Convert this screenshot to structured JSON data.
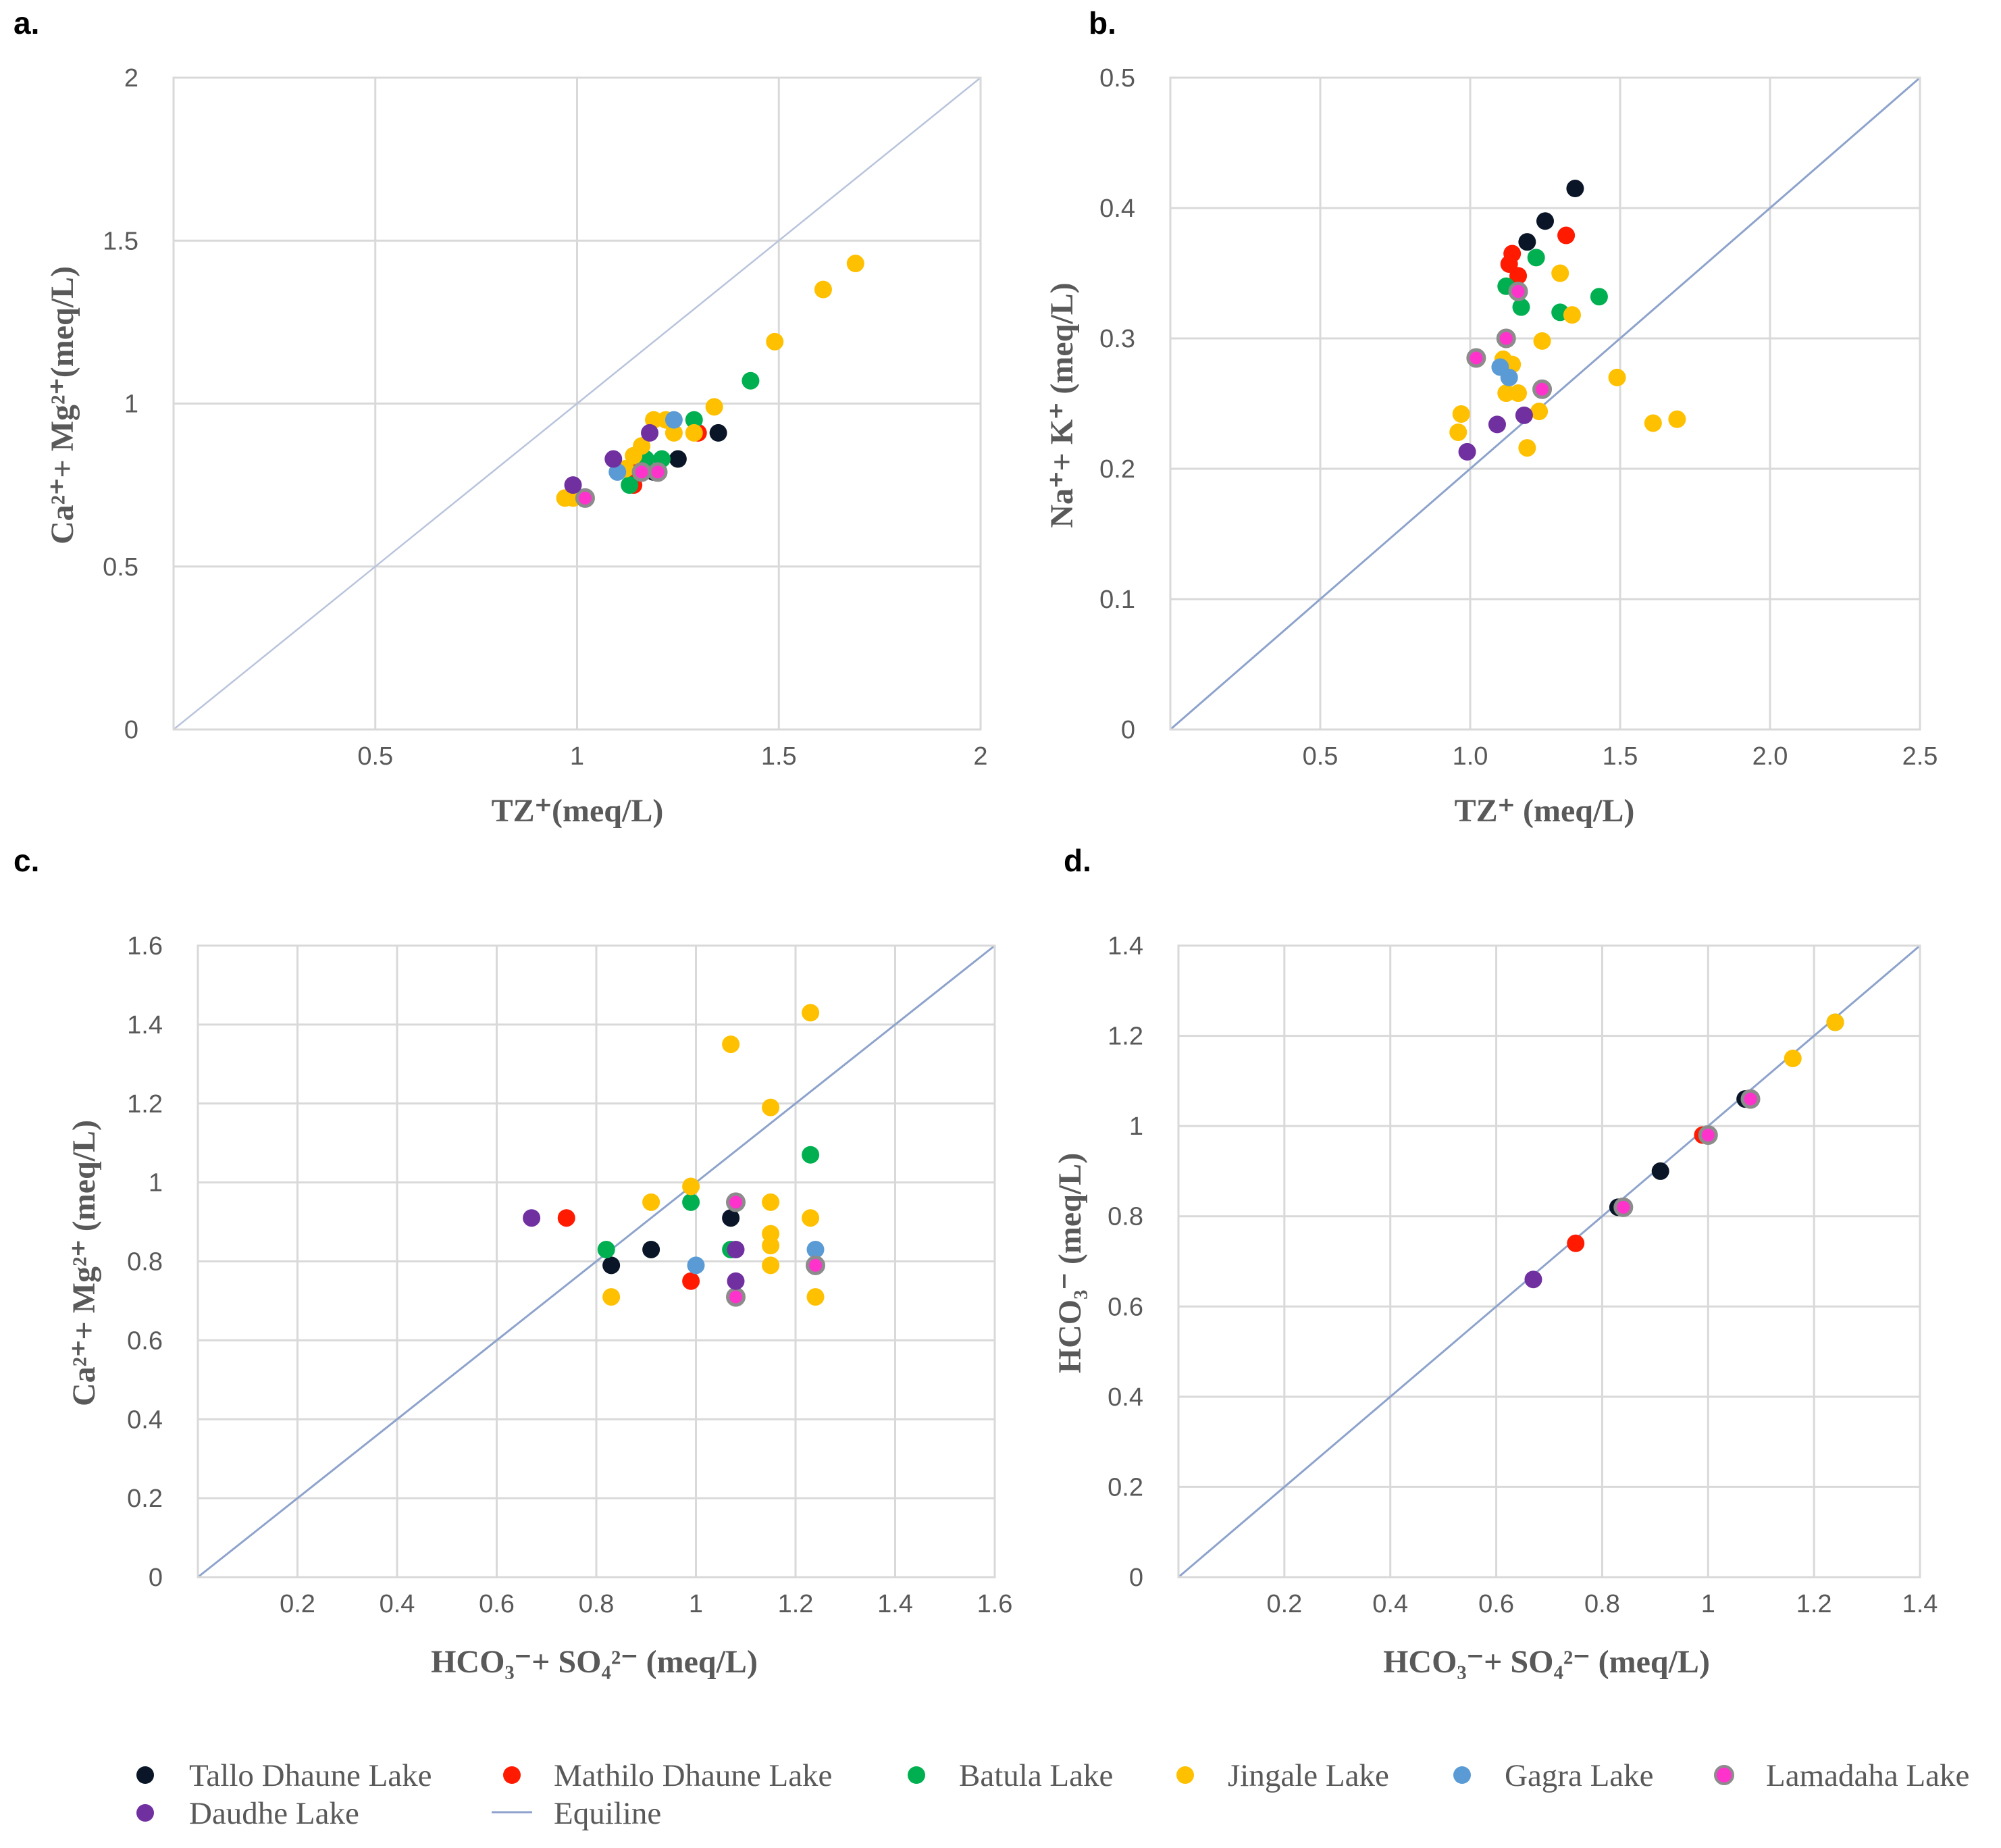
{
  "legend": {
    "items": [
      {
        "label": "Tallo Dhaune Lake",
        "color": "#0a1628",
        "marker": "dot"
      },
      {
        "label": "Mathilo Dhaune Lake",
        "color": "#ff1a00",
        "marker": "dot"
      },
      {
        "label": "Batula Lake",
        "color": "#00b050",
        "marker": "dot"
      },
      {
        "label": "Jingale Lake",
        "color": "#ffc000",
        "marker": "dot"
      },
      {
        "label": "Gagra Lake",
        "color": "#5b9bd5",
        "marker": "dot"
      },
      {
        "label": "Lamadaha Lake",
        "color": "#ff33cc",
        "marker": "dot"
      },
      {
        "label": "Daudhe Lake",
        "color": "#7030a0",
        "marker": "dot"
      },
      {
        "label": "Equiline",
        "color": "#8ea3cc",
        "marker": "line"
      }
    ]
  },
  "chart_data": [
    {
      "panel": "a.",
      "type": "scatter",
      "xlabel": "TZ⁺(meq/L)",
      "ylabel": "Ca²⁺+ Mg²⁺(meq/L)",
      "xlim": [
        0,
        2
      ],
      "ylim": [
        0,
        2
      ],
      "xticks": [
        {
          "v": 0.5,
          "t": "0.5"
        },
        {
          "v": 1,
          "t": "1"
        },
        {
          "v": 1.5,
          "t": "1.5"
        },
        {
          "v": 2,
          "t": "2"
        }
      ],
      "yticks": [
        {
          "v": 0,
          "t": "0"
        },
        {
          "v": 0.5,
          "t": "0.5"
        },
        {
          "v": 1,
          "t": "1"
        },
        {
          "v": 1.5,
          "t": "1.5"
        },
        {
          "v": 2,
          "t": "2"
        }
      ],
      "equiline": [
        [
          0,
          0
        ],
        [
          2,
          2
        ]
      ],
      "series": [
        {
          "name": "Tallo Dhaune Lake",
          "points": [
            [
              1.25,
              0.83
            ],
            [
              1.19,
              0.79
            ],
            [
              1.35,
              0.91
            ]
          ]
        },
        {
          "name": "Mathilo Dhaune Lake",
          "points": [
            [
              1.15,
              0.79
            ],
            [
              1.14,
              0.75
            ],
            [
              1.3,
              0.91
            ]
          ]
        },
        {
          "name": "Batula Lake",
          "points": [
            [
              1.17,
              0.83
            ],
            [
              1.21,
              0.83
            ],
            [
              1.13,
              0.75
            ],
            [
              1.29,
              0.95
            ],
            [
              1.43,
              1.07
            ]
          ]
        },
        {
          "name": "Jingale Lake",
          "points": [
            [
              0.97,
              0.71
            ],
            [
              0.99,
              0.71
            ],
            [
              1.12,
              0.8
            ],
            [
              1.14,
              0.84
            ],
            [
              1.16,
              0.87
            ],
            [
              1.19,
              0.95
            ],
            [
              1.22,
              0.95
            ],
            [
              1.24,
              0.91
            ],
            [
              1.29,
              0.91
            ],
            [
              1.34,
              0.99
            ],
            [
              1.49,
              1.19
            ],
            [
              1.61,
              1.35
            ],
            [
              1.69,
              1.43
            ]
          ]
        },
        {
          "name": "Gagra Lake",
          "points": [
            [
              1.1,
              0.79
            ],
            [
              1.24,
              0.95
            ]
          ]
        },
        {
          "name": "Lamadaha Lake",
          "points": [
            [
              1.02,
              0.71
            ],
            [
              1.16,
              0.79
            ],
            [
              1.2,
              0.79
            ]
          ]
        },
        {
          "name": "Daudhe Lake",
          "points": [
            [
              0.99,
              0.75
            ],
            [
              1.09,
              0.83
            ],
            [
              1.18,
              0.91
            ]
          ]
        }
      ]
    },
    {
      "panel": "b.",
      "type": "scatter",
      "xlabel": "TZ⁺ (meq/L)",
      "ylabel": "Na⁺+ K⁺ (meq/L)",
      "xlim": [
        0,
        2.5
      ],
      "ylim": [
        0,
        0.5
      ],
      "xticks": [
        {
          "v": 0.5,
          "t": "0.5"
        },
        {
          "v": 1,
          "t": "1.0"
        },
        {
          "v": 1.5,
          "t": "1.5"
        },
        {
          "v": 2,
          "t": "2.0"
        },
        {
          "v": 2.5,
          "t": "2.5"
        }
      ],
      "yticks": [
        {
          "v": 0,
          "t": "0"
        },
        {
          "v": 0.1,
          "t": "0.1"
        },
        {
          "v": 0.2,
          "t": "0.2"
        },
        {
          "v": 0.3,
          "t": "0.3"
        },
        {
          "v": 0.4,
          "t": "0.4"
        },
        {
          "v": 0.5,
          "t": "0.5"
        }
      ],
      "equiline": [
        [
          0,
          0
        ],
        [
          2.5,
          0.5
        ]
      ],
      "series": [
        {
          "name": "Tallo Dhaune Lake",
          "points": [
            [
              1.19,
              0.374
            ],
            [
              1.25,
              0.39
            ],
            [
              1.35,
              0.415
            ]
          ]
        },
        {
          "name": "Mathilo Dhaune Lake",
          "points": [
            [
              1.14,
              0.365
            ],
            [
              1.13,
              0.357
            ],
            [
              1.16,
              0.348
            ],
            [
              1.32,
              0.379
            ]
          ]
        },
        {
          "name": "Batula Lake",
          "points": [
            [
              1.22,
              0.362
            ],
            [
              1.12,
              0.34
            ],
            [
              1.17,
              0.324
            ],
            [
              1.3,
              0.32
            ],
            [
              1.43,
              0.332
            ]
          ]
        },
        {
          "name": "Jingale Lake",
          "points": [
            [
              0.97,
              0.242
            ],
            [
              0.96,
              0.228
            ],
            [
              1.11,
              0.284
            ],
            [
              1.14,
              0.28
            ],
            [
              1.12,
              0.258
            ],
            [
              1.16,
              0.258
            ],
            [
              1.19,
              0.216
            ],
            [
              1.23,
              0.244
            ],
            [
              1.24,
              0.298
            ],
            [
              1.3,
              0.35
            ],
            [
              1.34,
              0.318
            ],
            [
              1.49,
              0.27
            ],
            [
              1.61,
              0.235
            ],
            [
              1.69,
              0.238
            ]
          ]
        },
        {
          "name": "Gagra Lake",
          "points": [
            [
              1.1,
              0.278
            ],
            [
              1.13,
              0.27
            ]
          ]
        },
        {
          "name": "Lamadaha Lake",
          "points": [
            [
              1.02,
              0.285
            ],
            [
              1.12,
              0.3
            ],
            [
              1.16,
              0.336
            ],
            [
              1.24,
              0.261
            ]
          ]
        },
        {
          "name": "Daudhe Lake",
          "points": [
            [
              0.99,
              0.213
            ],
            [
              1.09,
              0.234
            ],
            [
              1.18,
              0.241
            ]
          ]
        }
      ]
    },
    {
      "panel": "c.",
      "type": "scatter",
      "xlabel": "HCO₃⁻+ SO₄²⁻ (meq/L)",
      "ylabel": "Ca²⁺+ Mg²⁺ (meq/L)",
      "xlim": [
        0,
        1.6
      ],
      "ylim": [
        0,
        1.6
      ],
      "xticks": [
        {
          "v": 0.2,
          "t": "0.2"
        },
        {
          "v": 0.4,
          "t": "0.4"
        },
        {
          "v": 0.6,
          "t": "0.6"
        },
        {
          "v": 0.8,
          "t": "0.8"
        },
        {
          "v": 1,
          "t": "1"
        },
        {
          "v": 1.2,
          "t": "1.2"
        },
        {
          "v": 1.4,
          "t": "1.4"
        },
        {
          "v": 1.6,
          "t": "1.6"
        }
      ],
      "yticks": [
        {
          "v": 0,
          "t": "0"
        },
        {
          "v": 0.2,
          "t": "0.2"
        },
        {
          "v": 0.4,
          "t": "0.4"
        },
        {
          "v": 0.6,
          "t": "0.6"
        },
        {
          "v": 0.8,
          "t": "0.8"
        },
        {
          "v": 1,
          "t": "1"
        },
        {
          "v": 1.2,
          "t": "1.2"
        },
        {
          "v": 1.4,
          "t": "1.4"
        },
        {
          "v": 1.6,
          "t": "1.6"
        }
      ],
      "equiline": [
        [
          0,
          0
        ],
        [
          1.6,
          1.6
        ]
      ],
      "series": [
        {
          "name": "Tallo Dhaune Lake",
          "points": [
            [
              0.83,
              0.79
            ],
            [
              0.91,
              0.83
            ],
            [
              1.07,
              0.91
            ]
          ]
        },
        {
          "name": "Mathilo Dhaune Lake",
          "points": [
            [
              0.74,
              0.91
            ],
            [
              0.99,
              0.75
            ]
          ]
        },
        {
          "name": "Batula Lake",
          "points": [
            [
              0.82,
              0.83
            ],
            [
              0.99,
              0.95
            ],
            [
              1.07,
              0.83
            ],
            [
              1.23,
              1.07
            ]
          ]
        },
        {
          "name": "Jingale Lake",
          "points": [
            [
              0.83,
              0.71
            ],
            [
              0.91,
              0.95
            ],
            [
              0.99,
              0.99
            ],
            [
              1.07,
              1.35
            ],
            [
              1.15,
              0.95
            ],
            [
              1.15,
              1.19
            ],
            [
              1.15,
              0.87
            ],
            [
              1.15,
              0.84
            ],
            [
              1.15,
              0.79
            ],
            [
              1.23,
              1.43
            ],
            [
              1.23,
              0.91
            ],
            [
              1.24,
              0.71
            ]
          ]
        },
        {
          "name": "Gagra Lake",
          "points": [
            [
              1.0,
              0.79
            ],
            [
              1.24,
              0.83
            ]
          ]
        },
        {
          "name": "Lamadaha Lake",
          "points": [
            [
              1.08,
              0.95
            ],
            [
              1.08,
              0.71
            ],
            [
              1.24,
              0.79
            ]
          ]
        },
        {
          "name": "Daudhe Lake",
          "points": [
            [
              0.67,
              0.91
            ],
            [
              1.08,
              0.75
            ],
            [
              1.08,
              0.83
            ]
          ]
        }
      ]
    },
    {
      "panel": "d.",
      "type": "scatter",
      "xlabel": "HCO₃⁻+ SO₄²⁻ (meq/L)",
      "ylabel": "HCO₃⁻ (meq/L)",
      "xlim": [
        0,
        1.4
      ],
      "ylim": [
        0,
        1.4
      ],
      "xticks": [
        {
          "v": 0.2,
          "t": "0.2"
        },
        {
          "v": 0.4,
          "t": "0.4"
        },
        {
          "v": 0.6,
          "t": "0.6"
        },
        {
          "v": 0.8,
          "t": "0.8"
        },
        {
          "v": 1,
          "t": "1"
        },
        {
          "v": 1.2,
          "t": "1.2"
        },
        {
          "v": 1.4,
          "t": "1.4"
        }
      ],
      "yticks": [
        {
          "v": 0,
          "t": "0"
        },
        {
          "v": 0.2,
          "t": "0.2"
        },
        {
          "v": 0.4,
          "t": "0.4"
        },
        {
          "v": 0.6,
          "t": "0.6"
        },
        {
          "v": 0.8,
          "t": "0.8"
        },
        {
          "v": 1,
          "t": "1"
        },
        {
          "v": 1.2,
          "t": "1.2"
        },
        {
          "v": 1.4,
          "t": "1.4"
        }
      ],
      "equiline": [
        [
          0,
          0
        ],
        [
          1.4,
          1.4
        ]
      ],
      "series": [
        {
          "name": "Tallo Dhaune Lake",
          "points": [
            [
              0.83,
              0.82
            ],
            [
              0.91,
              0.9
            ],
            [
              1.07,
              1.06
            ]
          ]
        },
        {
          "name": "Mathilo Dhaune Lake",
          "points": [
            [
              0.75,
              0.74
            ],
            [
              0.99,
              0.98
            ]
          ]
        },
        {
          "name": "Batula Lake",
          "points": [
            [
              1.24,
              1.23
            ]
          ]
        },
        {
          "name": "Jingale Lake",
          "points": [
            [
              1.16,
              1.15
            ],
            [
              1.24,
              1.23
            ]
          ]
        },
        {
          "name": "Gagra Lake",
          "points": []
        },
        {
          "name": "Lamadaha Lake",
          "points": [
            [
              0.84,
              0.82
            ],
            [
              1.0,
              0.98
            ],
            [
              1.08,
              1.06
            ]
          ]
        },
        {
          "name": "Daudhe Lake",
          "points": [
            [
              0.67,
              0.66
            ]
          ]
        }
      ]
    }
  ]
}
